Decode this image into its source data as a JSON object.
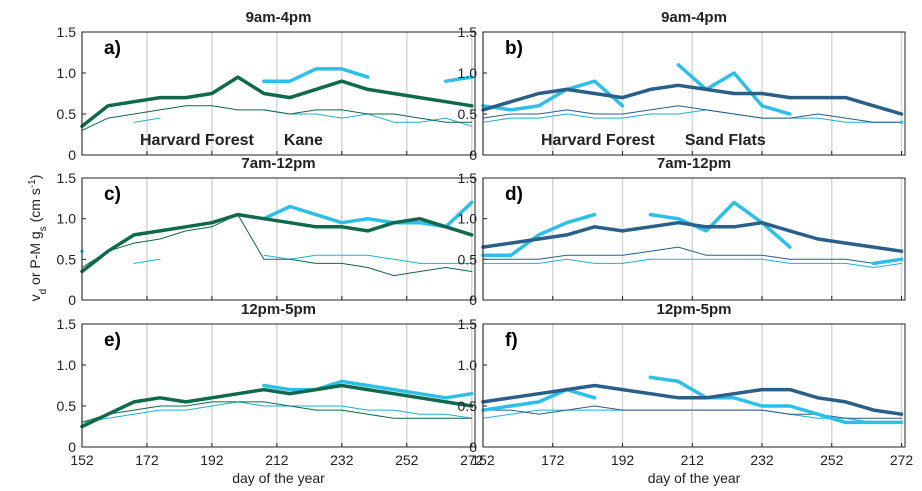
{
  "figure": {
    "ylabel": [
      {
        "text": "v"
      },
      {
        "text": "d",
        "shift": "sub"
      },
      {
        "text": " or P-M g"
      },
      {
        "text": "s",
        "shift": "sub"
      },
      {
        "text": " (cm s"
      },
      {
        "text": "-1",
        "shift": "super"
      },
      {
        "text": ")"
      }
    ]
  },
  "chart_data": [
    {
      "type": "line",
      "title": "9am-4pm",
      "label": "a)",
      "legend": "lower left",
      "grid": true,
      "show_xticklabels": false,
      "x": [
        152,
        160,
        168,
        176,
        184,
        192,
        200,
        208,
        216,
        224,
        232,
        240,
        248,
        256,
        264,
        272
      ],
      "xlim": [
        152,
        273
      ],
      "ylim": [
        0,
        1.5
      ],
      "xticks": [
        152,
        172,
        192,
        212,
        232,
        252,
        272
      ],
      "yticks": [
        0,
        0.5,
        {
          "value": 1,
          "label": "1.0"
        },
        1.5
      ],
      "series": [
        {
          "color": "#1fb0d6",
          "width": 1,
          "values": [
            0.25,
            null,
            0.4,
            0.45,
            null,
            null,
            null,
            0.55,
            0.5,
            0.5,
            0.45,
            0.5,
            0.4,
            0.4,
            0.45,
            0.35
          ]
        },
        {
          "color": "#11684a",
          "width": 1,
          "values": [
            0.3,
            0.45,
            0.5,
            0.55,
            0.6,
            0.6,
            0.55,
            0.55,
            0.5,
            0.55,
            0.55,
            0.5,
            0.5,
            0.45,
            0.4,
            0.4
          ]
        },
        {
          "name": "Harvard Forest",
          "color": "#2cc0e8",
          "width": 3.5,
          "values": [
            null,
            null,
            null,
            null,
            null,
            null,
            null,
            0.9,
            0.9,
            1.05,
            1.05,
            0.95,
            null,
            null,
            0.9,
            0.95
          ]
        },
        {
          "name": "Kane",
          "color": "#0e6a4a",
          "width": 3.5,
          "values": [
            0.35,
            0.6,
            0.65,
            0.7,
            0.7,
            0.75,
            0.95,
            0.75,
            0.7,
            0.8,
            0.9,
            0.8,
            0.75,
            0.7,
            0.65,
            0.6
          ]
        }
      ]
    },
    {
      "type": "line",
      "title": "9am-4pm",
      "label": "b)",
      "legend": "lower left",
      "grid": true,
      "show_xticklabels": false,
      "x": [
        152,
        160,
        168,
        176,
        184,
        192,
        200,
        208,
        216,
        224,
        232,
        240,
        248,
        256,
        264,
        272
      ],
      "xlim": [
        152,
        273
      ],
      "ylim": [
        0,
        1.5
      ],
      "xticks": [
        152,
        172,
        192,
        212,
        232,
        252,
        272
      ],
      "yticks": [
        0,
        0.5,
        {
          "value": 1,
          "label": "1.0"
        },
        1.5
      ],
      "series": [
        {
          "color": "#1fb0d6",
          "width": 1,
          "values": [
            0.4,
            0.45,
            0.45,
            0.5,
            0.45,
            0.45,
            0.5,
            0.5,
            0.55,
            0.5,
            0.45,
            0.45,
            0.45,
            0.4,
            0.4,
            0.4
          ]
        },
        {
          "color": "#2a5d86",
          "width": 1,
          "values": [
            0.45,
            0.5,
            0.5,
            0.55,
            0.5,
            0.5,
            0.55,
            0.6,
            0.55,
            0.5,
            0.45,
            0.45,
            0.5,
            0.45,
            0.4,
            0.4
          ]
        },
        {
          "name": "Harvard Forest",
          "color": "#2cc0e8",
          "width": 3.5,
          "values": [
            0.6,
            0.55,
            0.6,
            0.8,
            0.9,
            0.6,
            null,
            1.1,
            0.8,
            1.0,
            0.6,
            0.5,
            null,
            null,
            null,
            0.4
          ]
        },
        {
          "name": "Sand Flats",
          "color": "#2a5f8a",
          "width": 3.5,
          "values": [
            0.55,
            0.65,
            0.75,
            0.8,
            0.75,
            0.7,
            0.8,
            0.85,
            0.8,
            0.75,
            0.75,
            0.7,
            0.7,
            0.7,
            0.6,
            0.5
          ]
        }
      ]
    },
    {
      "type": "line",
      "title": "7am-12pm",
      "label": "c)",
      "grid": true,
      "show_xticklabels": false,
      "x": [
        152,
        160,
        168,
        176,
        184,
        192,
        200,
        208,
        216,
        224,
        232,
        240,
        248,
        256,
        264,
        272
      ],
      "xlim": [
        152,
        273
      ],
      "ylim": [
        0,
        1.5
      ],
      "xticks": [
        152,
        172,
        192,
        212,
        232,
        252,
        272
      ],
      "yticks": [
        0,
        0.5,
        {
          "value": 1,
          "label": "1.0"
        },
        1.5
      ],
      "series": [
        {
          "color": "#1fb0d6",
          "width": 1,
          "values": [
            0.3,
            null,
            0.45,
            0.5,
            null,
            null,
            null,
            0.55,
            0.5,
            0.55,
            0.55,
            0.55,
            0.5,
            0.45,
            0.45,
            0.45
          ]
        },
        {
          "color": "#11684a",
          "width": 1,
          "values": [
            0.4,
            0.6,
            0.7,
            0.75,
            0.85,
            0.9,
            1.05,
            0.5,
            0.5,
            0.45,
            0.45,
            0.4,
            0.3,
            0.35,
            0.4,
            0.35
          ]
        },
        {
          "color": "#2cc0e8",
          "width": 3.5,
          "values": [
            0.6,
            null,
            null,
            null,
            null,
            null,
            null,
            1.0,
            1.15,
            1.05,
            0.95,
            1.0,
            0.95,
            0.95,
            0.9,
            1.2
          ]
        },
        {
          "color": "#0e6a4a",
          "width": 3.5,
          "values": [
            0.35,
            0.6,
            0.8,
            0.85,
            0.9,
            0.95,
            1.05,
            1.0,
            0.95,
            0.9,
            0.9,
            0.85,
            0.95,
            1.0,
            0.9,
            0.8
          ]
        }
      ]
    },
    {
      "type": "line",
      "title": "7am-12pm",
      "label": "d)",
      "grid": true,
      "show_xticklabels": false,
      "x": [
        152,
        160,
        168,
        176,
        184,
        192,
        200,
        208,
        216,
        224,
        232,
        240,
        248,
        256,
        264,
        272
      ],
      "xlim": [
        152,
        273
      ],
      "ylim": [
        0,
        1.5
      ],
      "xticks": [
        152,
        172,
        192,
        212,
        232,
        252,
        272
      ],
      "yticks": [
        0,
        0.5,
        {
          "value": 1,
          "label": "1.0"
        },
        1.5
      ],
      "series": [
        {
          "color": "#1fb0d6",
          "width": 1,
          "values": [
            0.45,
            0.45,
            0.45,
            0.5,
            0.45,
            0.45,
            0.5,
            0.5,
            0.5,
            0.5,
            0.5,
            0.45,
            0.45,
            0.45,
            0.4,
            0.45
          ]
        },
        {
          "color": "#2a5d86",
          "width": 1,
          "values": [
            0.5,
            0.5,
            0.5,
            0.55,
            0.55,
            0.55,
            0.6,
            0.65,
            0.55,
            0.55,
            0.55,
            0.5,
            0.5,
            0.5,
            0.45,
            0.5
          ]
        },
        {
          "color": "#2cc0e8",
          "width": 3.5,
          "values": [
            0.55,
            0.55,
            0.8,
            0.95,
            1.05,
            null,
            1.05,
            1.0,
            0.85,
            1.2,
            0.95,
            0.65,
            null,
            null,
            0.45,
            0.5
          ]
        },
        {
          "color": "#2a5f8a",
          "width": 3.5,
          "values": [
            0.65,
            0.7,
            0.75,
            0.8,
            0.9,
            0.85,
            0.9,
            0.95,
            0.9,
            0.9,
            0.95,
            0.85,
            0.75,
            0.7,
            0.65,
            0.6
          ]
        }
      ]
    },
    {
      "type": "line",
      "title": "12pm-5pm",
      "label": "e)",
      "grid": true,
      "show_xticklabels": true,
      "xlabel": "day of the year",
      "x": [
        152,
        160,
        168,
        176,
        184,
        192,
        200,
        208,
        216,
        224,
        232,
        240,
        248,
        256,
        264,
        272
      ],
      "xlim": [
        152,
        273
      ],
      "ylim": [
        0,
        1.5
      ],
      "xticks": [
        152,
        172,
        192,
        212,
        232,
        252,
        272
      ],
      "yticks": [
        0,
        0.5,
        {
          "value": 1,
          "label": "1.0"
        },
        1.5
      ],
      "series": [
        {
          "color": "#1fb0d6",
          "width": 1,
          "values": [
            0.3,
            0.35,
            0.4,
            0.45,
            0.45,
            0.5,
            0.55,
            0.5,
            0.5,
            0.5,
            0.5,
            0.45,
            0.45,
            0.4,
            0.4,
            0.35
          ]
        },
        {
          "color": "#11684a",
          "width": 1,
          "values": [
            0.3,
            0.4,
            0.45,
            0.5,
            0.5,
            0.55,
            0.55,
            0.55,
            0.5,
            0.45,
            0.45,
            0.4,
            0.35,
            0.35,
            0.35,
            0.35
          ]
        },
        {
          "color": "#2cc0e8",
          "width": 3.5,
          "values": [
            null,
            null,
            null,
            null,
            null,
            null,
            null,
            0.75,
            0.7,
            0.7,
            0.8,
            0.75,
            0.7,
            0.65,
            0.6,
            0.65
          ]
        },
        {
          "color": "#0e6a4a",
          "width": 3.5,
          "values": [
            0.25,
            0.4,
            0.55,
            0.6,
            0.55,
            0.6,
            0.65,
            0.7,
            0.65,
            0.7,
            0.75,
            0.7,
            0.65,
            0.6,
            0.55,
            0.5
          ]
        }
      ]
    },
    {
      "type": "line",
      "title": "12pm-5pm",
      "label": "f)",
      "grid": true,
      "show_xticklabels": true,
      "xlabel": "day of the year",
      "x": [
        152,
        160,
        168,
        176,
        184,
        192,
        200,
        208,
        216,
        224,
        232,
        240,
        248,
        256,
        264,
        272
      ],
      "xlim": [
        152,
        273
      ],
      "ylim": [
        0,
        1.5
      ],
      "xticks": [
        152,
        172,
        192,
        212,
        232,
        252,
        272
      ],
      "yticks": [
        0,
        0.5,
        {
          "value": 1,
          "label": "1.0"
        },
        1.5
      ],
      "series": [
        {
          "color": "#1fb0d6",
          "width": 1,
          "values": [
            0.35,
            0.4,
            0.45,
            0.45,
            0.45,
            0.45,
            0.45,
            0.45,
            0.45,
            0.45,
            0.45,
            0.4,
            0.35,
            0.35,
            0.3,
            0.3
          ]
        },
        {
          "color": "#2a5d86",
          "width": 1,
          "values": [
            0.45,
            0.45,
            0.4,
            0.45,
            0.5,
            0.45,
            0.45,
            0.45,
            0.45,
            0.45,
            0.45,
            0.4,
            0.4,
            0.35,
            0.35,
            0.35
          ]
        },
        {
          "color": "#2cc0e8",
          "width": 3.5,
          "values": [
            0.45,
            0.5,
            0.55,
            0.7,
            0.6,
            null,
            0.85,
            0.8,
            0.6,
            0.6,
            0.5,
            0.5,
            0.4,
            0.3,
            0.3,
            0.3
          ]
        },
        {
          "color": "#2a5f8a",
          "width": 3.5,
          "values": [
            0.55,
            0.6,
            0.65,
            0.7,
            0.75,
            0.7,
            0.65,
            0.6,
            0.6,
            0.65,
            0.7,
            0.7,
            0.6,
            0.55,
            0.45,
            0.4
          ]
        }
      ]
    }
  ]
}
